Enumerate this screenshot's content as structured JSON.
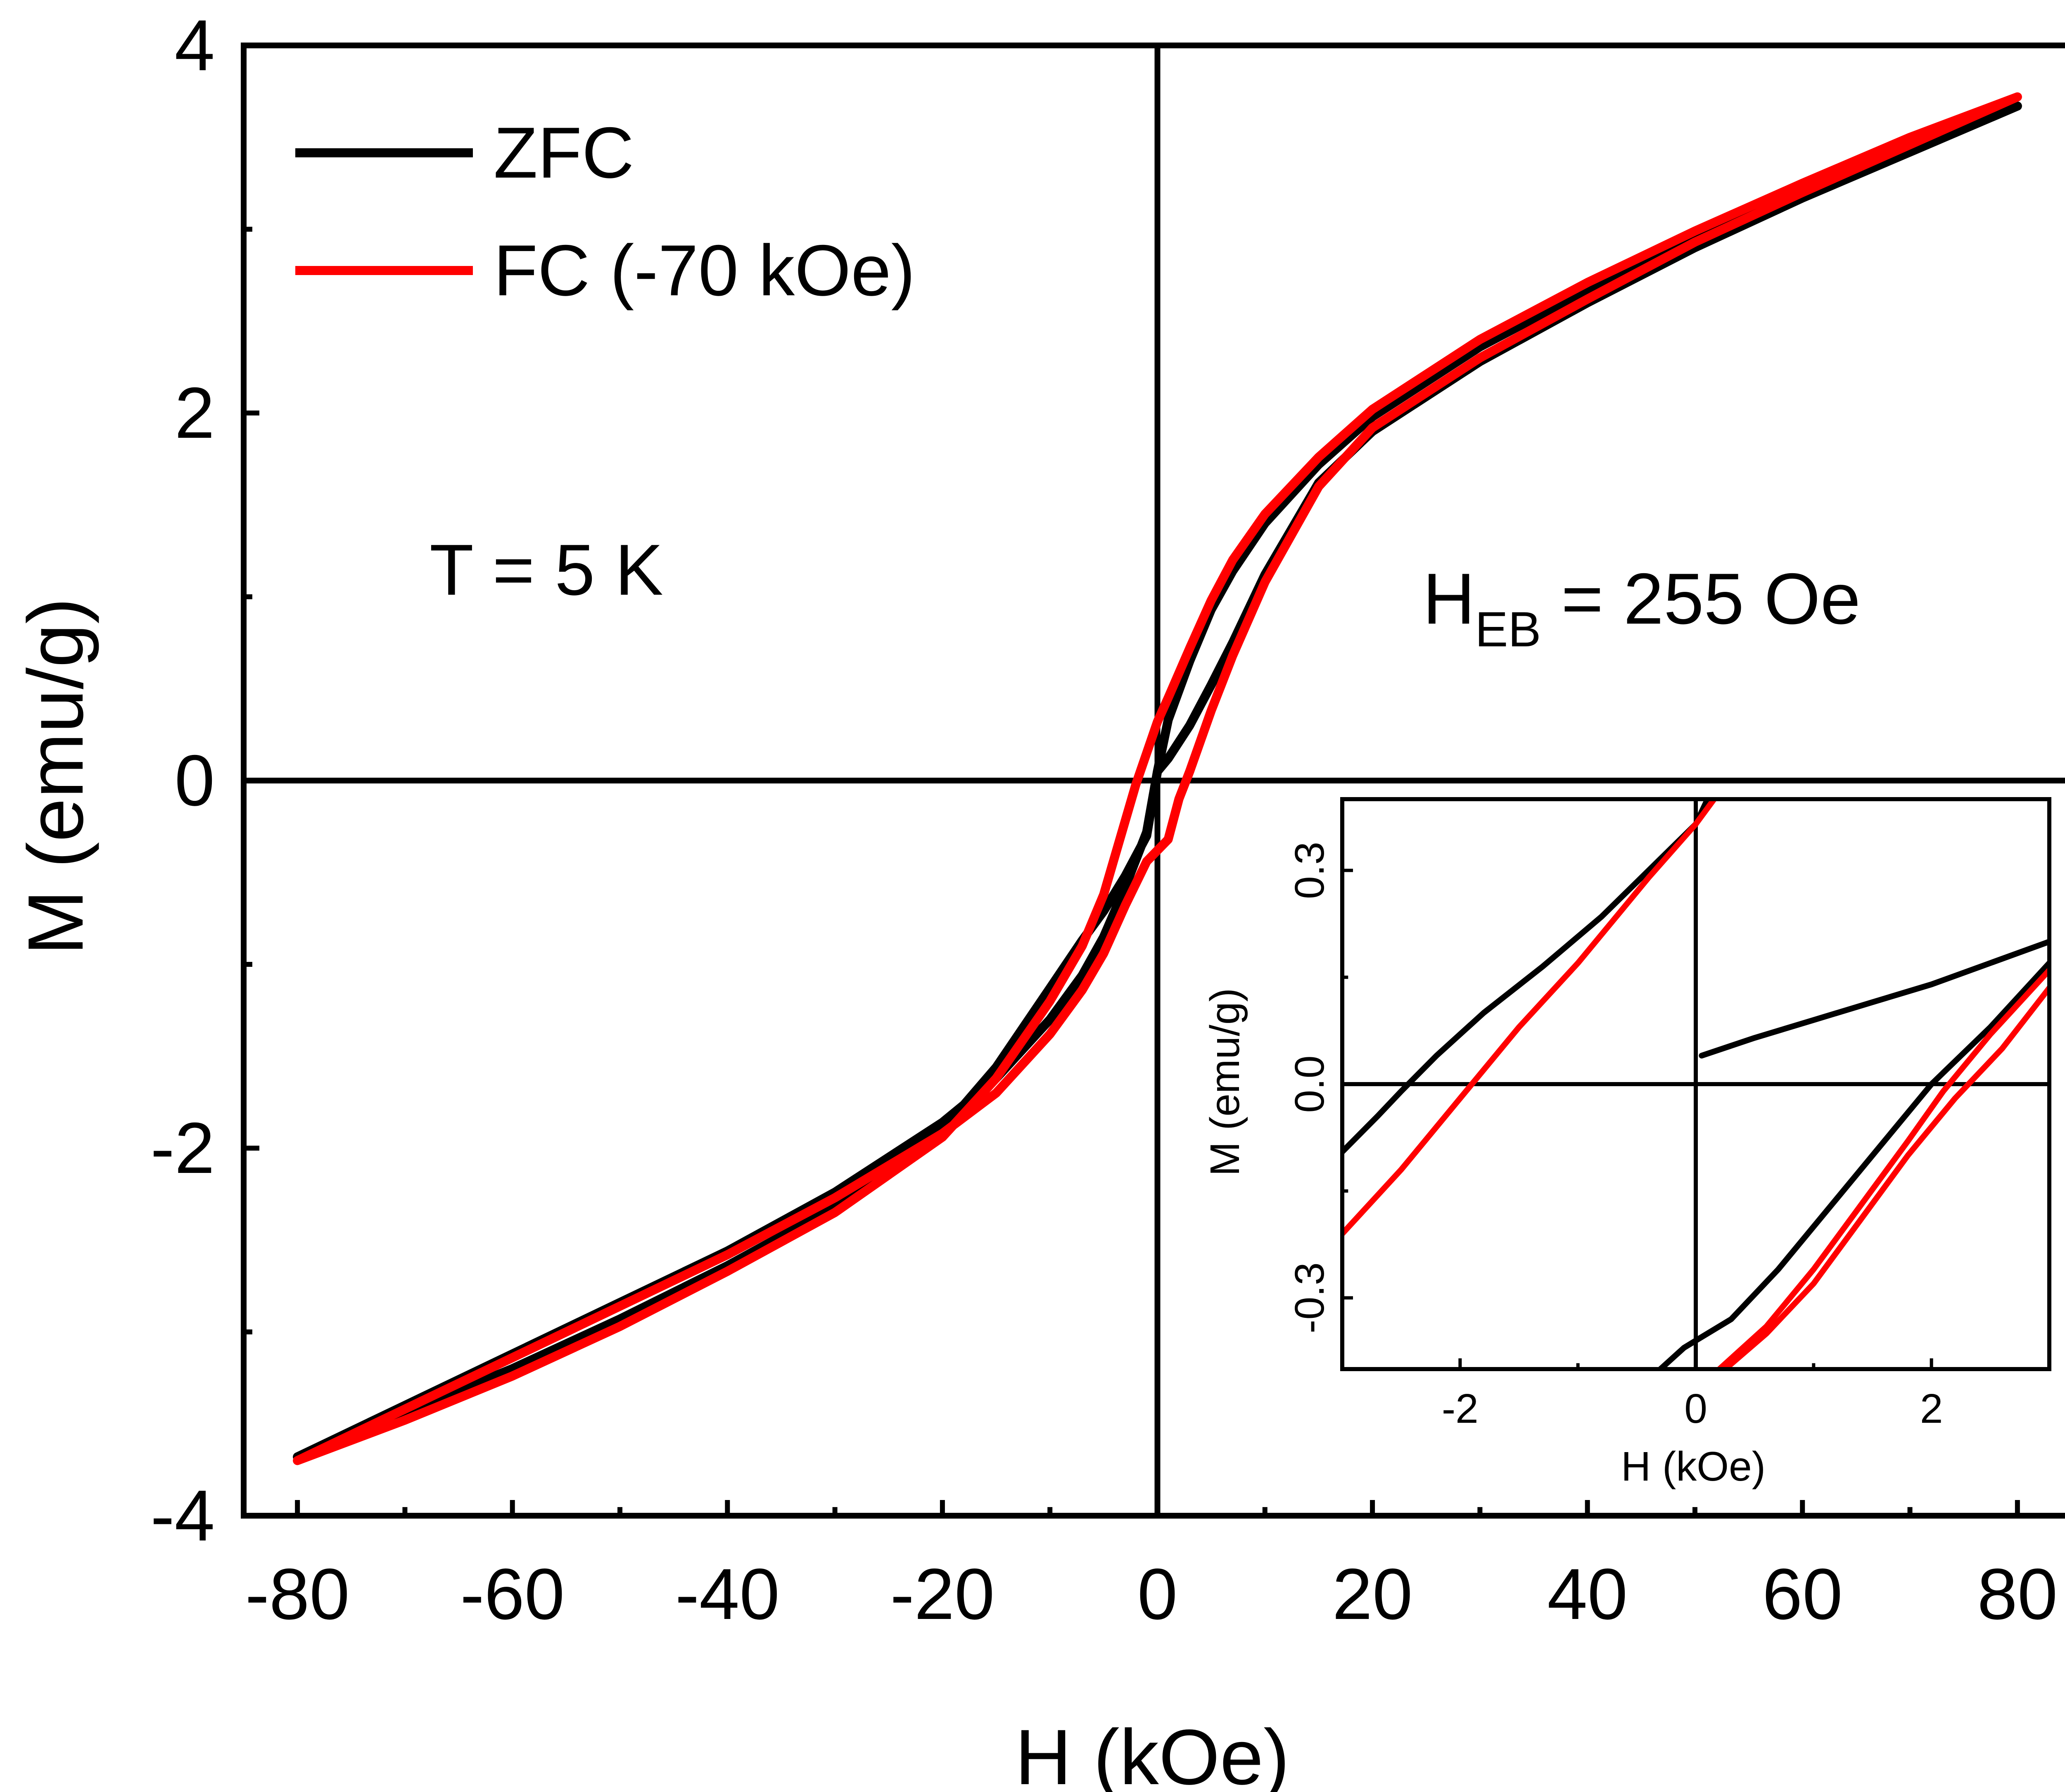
{
  "chart_data": [
    {
      "type": "line",
      "xlabel": "H (kOe)",
      "ylabel": "M (emu/g)",
      "xlim": [
        -85,
        85
      ],
      "ylim": [
        -4,
        4
      ],
      "xticks": [
        "-80",
        "-60",
        "-40",
        "-20",
        "0",
        "20",
        "40",
        "60",
        "80"
      ],
      "xtick_values": [
        -80,
        -60,
        -40,
        -20,
        0,
        20,
        40,
        60,
        80
      ],
      "yticks": [
        "-4",
        "-2",
        "0",
        "2",
        "4"
      ],
      "ytick_values": [
        -4,
        -2,
        0,
        2,
        4
      ],
      "zero_lines": true,
      "legend_position": "top-left",
      "annotations": [
        {
          "text": "T = 5 K"
        },
        {
          "text_main": "H",
          "text_sub": "EB",
          "text_rest": " = 255 Oe"
        }
      ],
      "series": [
        {
          "name": "ZFC",
          "color": "#000000",
          "x": [
            -80,
            -70,
            -60,
            -50,
            -40,
            -30,
            -20,
            -15,
            -10,
            -7,
            -5,
            -3,
            -1,
            0,
            1,
            3,
            5,
            7,
            10,
            15,
            20,
            30,
            40,
            50,
            60,
            70,
            80,
            70,
            60,
            50,
            40,
            30,
            20,
            15,
            10,
            7,
            5,
            3,
            1,
            0,
            -1,
            -3,
            -5,
            -7,
            -10,
            -15,
            -20,
            -30,
            -40,
            -50,
            -60,
            -70,
            -80
          ],
          "y": [
            -3.68,
            -3.4,
            -3.12,
            -2.84,
            -2.56,
            -2.24,
            -1.86,
            -1.62,
            -1.3,
            -1.06,
            -0.85,
            -0.58,
            -0.28,
            0.05,
            0.12,
            0.3,
            0.52,
            0.75,
            1.12,
            1.62,
            1.9,
            2.28,
            2.6,
            2.9,
            3.17,
            3.42,
            3.67,
            3.45,
            3.2,
            2.95,
            2.67,
            2.36,
            1.98,
            1.72,
            1.4,
            1.14,
            0.93,
            0.65,
            0.33,
            0.05,
            -0.3,
            -0.52,
            -0.71,
            -0.87,
            -1.13,
            -1.56,
            -1.9,
            -2.32,
            -2.64,
            -2.93,
            -3.2,
            -3.44,
            -3.68
          ]
        },
        {
          "name": "FC (-70 kOe)",
          "color": "#ff0000",
          "x": [
            -80,
            -70,
            -60,
            -50,
            -40,
            -30,
            -20,
            -15,
            -10,
            -7,
            -5,
            -3,
            -1,
            0,
            1,
            2,
            3,
            5,
            7,
            10,
            15,
            20,
            30,
            40,
            50,
            60,
            70,
            80,
            70,
            60,
            50,
            40,
            30,
            20,
            15,
            10,
            7,
            5,
            3,
            1,
            0,
            -1,
            -2,
            -3,
            -5,
            -7,
            -10,
            -15,
            -20,
            -30,
            -40,
            -50,
            -60,
            -70,
            -80
          ],
          "y": [
            -3.7,
            -3.42,
            -3.14,
            -2.86,
            -2.58,
            -2.27,
            -1.92,
            -1.7,
            -1.38,
            -1.14,
            -0.94,
            -0.68,
            -0.44,
            -0.38,
            -0.32,
            -0.1,
            0.05,
            0.38,
            0.68,
            1.08,
            1.6,
            1.92,
            2.3,
            2.62,
            2.93,
            3.2,
            3.46,
            3.72,
            3.5,
            3.25,
            2.99,
            2.71,
            2.4,
            2.02,
            1.76,
            1.45,
            1.2,
            0.98,
            0.72,
            0.45,
            0.32,
            0.15,
            -0.02,
            -0.22,
            -0.62,
            -0.9,
            -1.2,
            -1.62,
            -1.94,
            -2.35,
            -2.67,
            -2.97,
            -3.24,
            -3.48,
            -3.7
          ]
        }
      ]
    },
    {
      "type": "line",
      "xlabel": "H (kOe)",
      "ylabel": "M (emu/g)",
      "xlim": [
        -3,
        3
      ],
      "ylim": [
        -0.4,
        0.4
      ],
      "xticks": [
        "-2",
        "0",
        "2"
      ],
      "xtick_values": [
        -2,
        0,
        2
      ],
      "yticks": [
        "-0.3",
        "0.0",
        "0.3"
      ],
      "ytick_values": [
        -0.3,
        0.0,
        0.3
      ],
      "zero_lines": true,
      "series": [
        {
          "color": "#000000",
          "segments": [
            {
              "x": [
                -3,
                -2.7,
                -2.5,
                -2.2,
                -1.8,
                -1.3,
                -0.8,
                -0.4,
                0.0,
                0.1,
                0.2
              ],
              "y": [
                -0.095,
                -0.045,
                -0.01,
                0.04,
                0.1,
                0.165,
                0.235,
                0.3,
                0.365,
                0.4,
                0.41
              ]
            },
            {
              "x": [
                0.05,
                0.5,
                1.0,
                1.5,
                2.0,
                2.5,
                3.0
              ],
              "y": [
                0.04,
                0.065,
                0.09,
                0.115,
                0.14,
                0.17,
                0.2
              ]
            },
            {
              "x": [
                -0.3,
                -0.1,
                0.0,
                0.3,
                0.7,
                1.2,
                1.6,
                2.0,
                2.5,
                3.0
              ],
              "y": [
                -0.4,
                -0.37,
                -0.36,
                -0.33,
                -0.26,
                -0.16,
                -0.08,
                0.0,
                0.08,
                0.17
              ]
            }
          ]
        },
        {
          "color": "#ff0000",
          "segments": [
            {
              "x": [
                -3,
                -2.5,
                -2.0,
                -1.5,
                -1.0,
                -0.7,
                -0.4,
                0.0,
                0.2
              ],
              "y": [
                -0.21,
                -0.12,
                -0.02,
                0.08,
                0.17,
                0.23,
                0.29,
                0.365,
                0.41
              ]
            },
            {
              "x": [
                0.2,
                0.6,
                1.0,
                1.4,
                1.8,
                2.1,
                2.5,
                3.0
              ],
              "y": [
                -0.4,
                -0.34,
                -0.26,
                -0.17,
                -0.08,
                -0.01,
                0.07,
                0.16
              ]
            },
            {
              "x": [
                0.25,
                0.6,
                1.0,
                1.4,
                1.8,
                2.2,
                2.6,
                3.0
              ],
              "y": [
                -0.4,
                -0.35,
                -0.28,
                -0.19,
                -0.1,
                -0.02,
                0.05,
                0.135
              ]
            }
          ]
        }
      ]
    }
  ]
}
